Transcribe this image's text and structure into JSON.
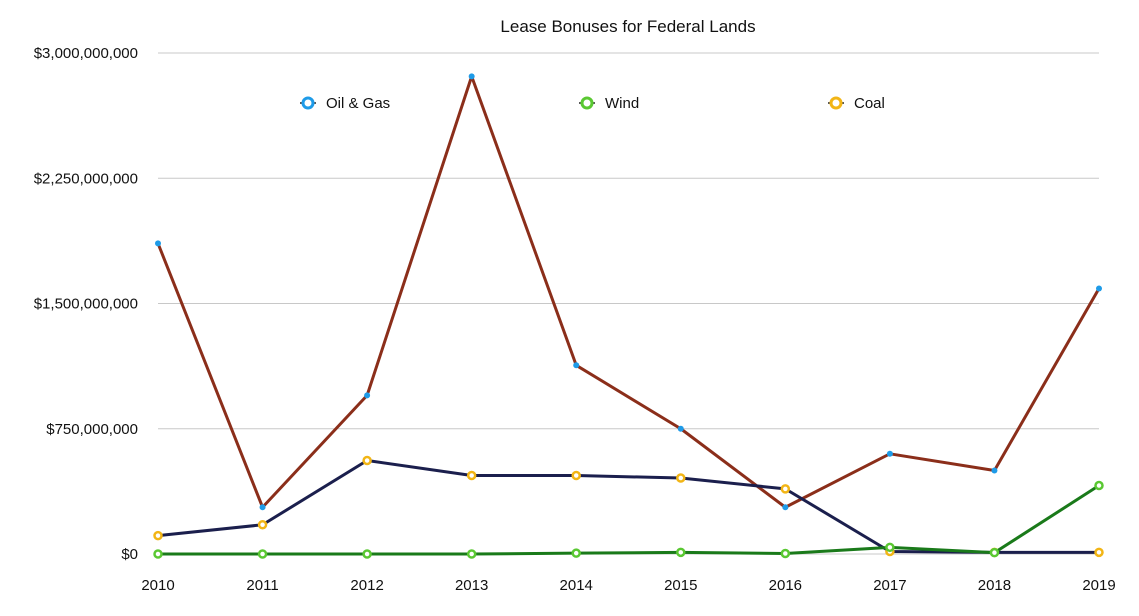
{
  "chart_data": {
    "type": "line",
    "title": "Lease Bonuses for Federal Lands",
    "xlabel": "",
    "ylabel": "",
    "categories": [
      "2010",
      "2011",
      "2012",
      "2013",
      "2014",
      "2015",
      "2016",
      "2017",
      "2018",
      "2019"
    ],
    "y_ticks": [
      0,
      750000000,
      1500000000,
      2250000000,
      3000000000
    ],
    "y_tick_labels": [
      "$0",
      "$750,000,000",
      "$1,500,000,000",
      "$2,250,000,000",
      "$3,000,000,000"
    ],
    "ylim": [
      0,
      3000000000
    ],
    "grid": true,
    "legend_position": "top",
    "series": [
      {
        "name": "Oil & Gas",
        "line_color": "#8b2e1a",
        "marker_color": "#1e9be8",
        "marker": "dot",
        "values": [
          1860000000,
          280000000,
          950000000,
          2860000000,
          1130000000,
          750000000,
          280000000,
          600000000,
          500000000,
          1590000000
        ]
      },
      {
        "name": "Coal",
        "line_color": "#1b1f4d",
        "marker_color": "#f2b515",
        "marker": "ring",
        "values": [
          110000000,
          175000000,
          560000000,
          470000000,
          470000000,
          455000000,
          390000000,
          15000000,
          10000000,
          10000000
        ]
      },
      {
        "name": "Wind",
        "line_color": "#1a7a1a",
        "marker_color": "#5ac832",
        "marker": "ring",
        "values": [
          0,
          0,
          0,
          0,
          5000000,
          10000000,
          3000000,
          40000000,
          8000000,
          410000000
        ]
      }
    ],
    "legend": [
      {
        "name": "Oil & Gas",
        "color": "#1e9be8"
      },
      {
        "name": "Wind",
        "color": "#5ac832"
      },
      {
        "name": "Coal",
        "color": "#f2b515"
      }
    ]
  }
}
